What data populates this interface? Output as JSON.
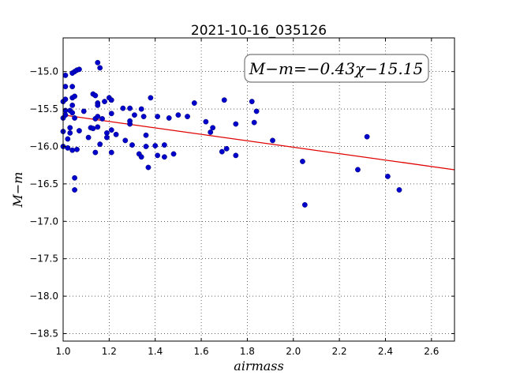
{
  "chart_data": {
    "type": "scatter",
    "title": "2021-10-16_035126",
    "xlabel": "airmass",
    "ylabel": "M−m",
    "xlim": [
      1.0,
      2.7
    ],
    "ylim": [
      -18.6,
      -14.55
    ],
    "y_inverted": true,
    "grid": true,
    "grid_style": "dotted",
    "x_ticks": [
      1.0,
      1.2,
      1.4,
      1.6,
      1.8,
      2.0,
      2.2,
      2.4,
      2.6
    ],
    "x_tick_labels": [
      "1.0",
      "1.2",
      "1.4",
      "1.6",
      "1.8",
      "2.0",
      "2.2",
      "2.4",
      "2.6"
    ],
    "y_ticks": [
      -15.0,
      -15.5,
      -16.0,
      -16.5,
      -17.0,
      -17.5,
      -18.0,
      -18.5
    ],
    "y_tick_labels": [
      "−15.0",
      "−15.5",
      "−16.0",
      "−16.5",
      "−17.0",
      "−17.5",
      "−18.0",
      "−18.5"
    ],
    "annotation": "M−m=−0.43χ−15.15",
    "annotation_placement": "top-right",
    "fit": {
      "slope": -0.43,
      "intercept": -15.15,
      "color": "#e00000"
    },
    "point_color": "#0000cc",
    "points": [
      [
        1.0,
        -15.4
      ],
      [
        1.0,
        -15.62
      ],
      [
        1.0,
        -15.8
      ],
      [
        1.0,
        -16.0
      ],
      [
        1.01,
        -15.05
      ],
      [
        1.01,
        -15.2
      ],
      [
        1.01,
        -15.37
      ],
      [
        1.01,
        -15.52
      ],
      [
        1.01,
        -15.58
      ],
      [
        1.02,
        -15.9
      ],
      [
        1.02,
        -16.02
      ],
      [
        1.03,
        -15.52
      ],
      [
        1.03,
        -15.75
      ],
      [
        1.03,
        -15.82
      ],
      [
        1.04,
        -15.02
      ],
      [
        1.04,
        -15.2
      ],
      [
        1.04,
        -15.35
      ],
      [
        1.04,
        -15.45
      ],
      [
        1.04,
        -15.55
      ],
      [
        1.04,
        -16.05
      ],
      [
        1.05,
        -16.42
      ],
      [
        1.05,
        -16.58
      ],
      [
        1.05,
        -15.0
      ],
      [
        1.05,
        -15.33
      ],
      [
        1.05,
        -15.62
      ],
      [
        1.06,
        -16.04
      ],
      [
        1.06,
        -14.98
      ],
      [
        1.07,
        -14.97
      ],
      [
        1.07,
        -15.79
      ],
      [
        1.09,
        -15.53
      ],
      [
        1.11,
        -15.88
      ],
      [
        1.12,
        -15.75
      ],
      [
        1.13,
        -15.3
      ],
      [
        1.13,
        -15.76
      ],
      [
        1.14,
        -15.32
      ],
      [
        1.14,
        -15.63
      ],
      [
        1.14,
        -16.08
      ],
      [
        1.15,
        -15.6
      ],
      [
        1.15,
        -15.74
      ],
      [
        1.15,
        -15.42
      ],
      [
        1.15,
        -15.45
      ],
      [
        1.15,
        -14.88
      ],
      [
        1.16,
        -14.95
      ],
      [
        1.16,
        -15.97
      ],
      [
        1.17,
        -15.63
      ],
      [
        1.18,
        -15.4
      ],
      [
        1.19,
        -15.82
      ],
      [
        1.19,
        -15.88
      ],
      [
        1.2,
        -15.35
      ],
      [
        1.21,
        -15.38
      ],
      [
        1.21,
        -15.56
      ],
      [
        1.21,
        -15.78
      ],
      [
        1.21,
        -16.08
      ],
      [
        1.23,
        -15.84
      ],
      [
        1.26,
        -15.49
      ],
      [
        1.27,
        -15.92
      ],
      [
        1.29,
        -15.49
      ],
      [
        1.29,
        -15.7
      ],
      [
        1.29,
        -15.66
      ],
      [
        1.3,
        -15.98
      ],
      [
        1.31,
        -15.58
      ],
      [
        1.33,
        -16.1
      ],
      [
        1.34,
        -15.5
      ],
      [
        1.34,
        -16.14
      ],
      [
        1.35,
        -15.6
      ],
      [
        1.36,
        -15.85
      ],
      [
        1.36,
        -16.0
      ],
      [
        1.37,
        -16.28
      ],
      [
        1.38,
        -15.35
      ],
      [
        1.4,
        -15.99
      ],
      [
        1.41,
        -15.6
      ],
      [
        1.41,
        -16.12
      ],
      [
        1.44,
        -15.98
      ],
      [
        1.44,
        -16.14
      ],
      [
        1.46,
        -15.62
      ],
      [
        1.48,
        -16.1
      ],
      [
        1.5,
        -15.58
      ],
      [
        1.54,
        -15.6
      ],
      [
        1.57,
        -15.42
      ],
      [
        1.62,
        -15.67
      ],
      [
        1.64,
        -15.81
      ],
      [
        1.65,
        -15.75
      ],
      [
        1.69,
        -16.07
      ],
      [
        1.7,
        -15.38
      ],
      [
        1.71,
        -16.03
      ],
      [
        1.75,
        -15.7
      ],
      [
        1.75,
        -16.12
      ],
      [
        1.82,
        -15.4
      ],
      [
        1.83,
        -15.68
      ],
      [
        1.84,
        -15.53
      ],
      [
        1.91,
        -15.92
      ],
      [
        2.04,
        -16.2
      ],
      [
        2.05,
        -16.78
      ],
      [
        2.28,
        -16.31
      ],
      [
        2.32,
        -15.87
      ],
      [
        2.41,
        -16.4
      ],
      [
        2.46,
        -16.58
      ]
    ]
  }
}
